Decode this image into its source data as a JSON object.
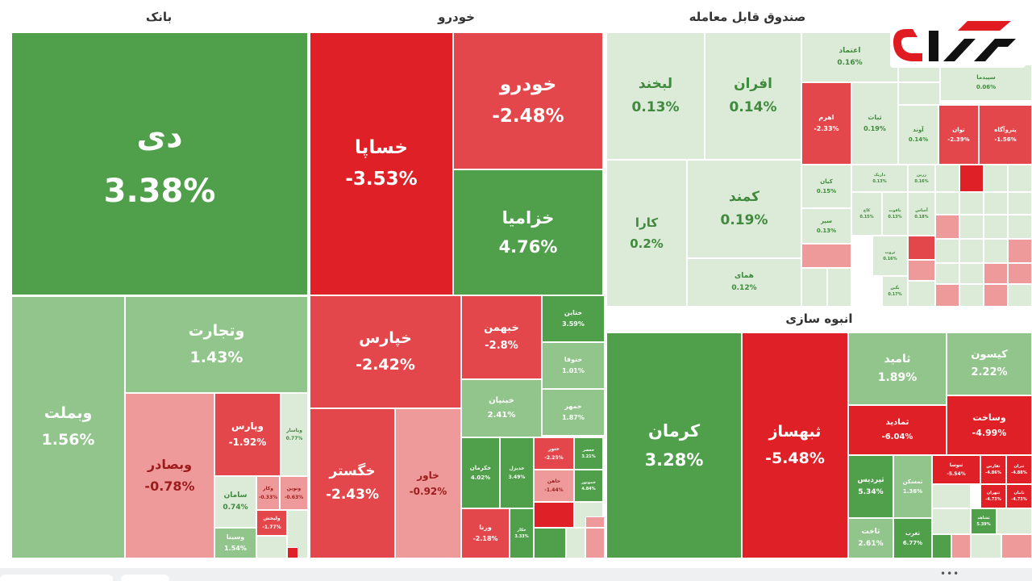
{
  "chart_data": {
    "type": "treemap",
    "metric": "daily change %",
    "colors": {
      "strong_green": "#4f9f4b",
      "mid_green": "#91c58b",
      "light_green": "#dcebd8",
      "strong_red": "#df2027",
      "mid_red": "#e4474b",
      "light_red": "#ef9a9a",
      "title": "#333333"
    },
    "sectors": [
      {
        "name": "بانک",
        "items": [
          {
            "name": "دی",
            "value": "3.38%"
          },
          {
            "name": "وتجارت",
            "value": "1.43%"
          },
          {
            "name": "وبملت",
            "value": "1.56%"
          },
          {
            "name": "وبصادر",
            "value": "-0.78%"
          },
          {
            "name": "وپارس",
            "value": "-1.92%"
          },
          {
            "name": "وپاسار",
            "value": "0.77%"
          },
          {
            "name": "سامان",
            "value": "0.74%"
          },
          {
            "name": "وکار",
            "value": "-0.33%"
          },
          {
            "name": "ونوین",
            "value": "-0.63%"
          },
          {
            "name": "ولیخش",
            "value": "-1.77%"
          },
          {
            "name": "وسینا",
            "value": "1.54%"
          }
        ]
      },
      {
        "name": "خودرو",
        "items": [
          {
            "name": "خساپا",
            "value": "-3.53%"
          },
          {
            "name": "خودرو",
            "value": "-2.48%"
          },
          {
            "name": "خزامیا",
            "value": "4.76%"
          },
          {
            "name": "خپارس",
            "value": "-2.42%"
          },
          {
            "name": "خبهمن",
            "value": "-2.8%"
          },
          {
            "name": "ختاین",
            "value": "3.59%"
          },
          {
            "name": "ختوقا",
            "value": "1.01%"
          },
          {
            "name": "خبنیان",
            "value": "2.41%"
          },
          {
            "name": "خمهر",
            "value": "1.87%"
          },
          {
            "name": "خگستر",
            "value": "-2.43%"
          },
          {
            "name": "خاور",
            "value": "-0.92%"
          },
          {
            "name": "خکرمان",
            "value": "4.02%"
          },
          {
            "name": "خدیزل",
            "value": "3.49%"
          },
          {
            "name": "ختور",
            "value": "-2.25%"
          },
          {
            "name": "خعصر",
            "value": "3.21%"
          },
          {
            "name": "خاهن",
            "value": "-1.44%"
          },
          {
            "name": "خموتور",
            "value": "4.84%"
          },
          {
            "name": "ورنا",
            "value": "-2.18%"
          },
          {
            "name": "خکار",
            "value": "3.33%"
          }
        ]
      },
      {
        "name": "صندوق قابل معامله",
        "items": [
          {
            "name": "لبخند",
            "value": "0.13%"
          },
          {
            "name": "افران",
            "value": "0.14%"
          },
          {
            "name": "اعتماد",
            "value": "0.16%"
          },
          {
            "name": "سپیدما",
            "value": "0.06%"
          },
          {
            "name": "اهرم",
            "value": "-2.33%"
          },
          {
            "name": "ثبات",
            "value": "0.19%"
          },
          {
            "name": "آوند",
            "value": "0.14%"
          },
          {
            "name": "توان",
            "value": "-2.39%"
          },
          {
            "name": "پتروآگاه",
            "value": "-1.56%"
          },
          {
            "name": "کارا",
            "value": "0.2%"
          },
          {
            "name": "کمند",
            "value": "0.19%"
          },
          {
            "name": "همای",
            "value": "0.12%"
          },
          {
            "name": "کیان",
            "value": "0.15%"
          },
          {
            "name": "سپر",
            "value": "0.13%"
          },
          {
            "name": "داریک",
            "value": "0.13%"
          },
          {
            "name": "کاج",
            "value": "0.15%"
          },
          {
            "name": "یاقوت",
            "value": "0.13%"
          },
          {
            "name": "زرین",
            "value": "0.16%"
          },
          {
            "name": "ثروت",
            "value": "0.16%"
          },
          {
            "name": "نگین",
            "value": "0.17%"
          },
          {
            "name": "آساس",
            "value": "0.18%"
          }
        ]
      },
      {
        "name": "انبوه سازی",
        "items": [
          {
            "name": "کرمان",
            "value": "3.28%"
          },
          {
            "name": "ثبهساز",
            "value": "-5.48%"
          },
          {
            "name": "ثامید",
            "value": "1.89%"
          },
          {
            "name": "کیسون",
            "value": "2.22%"
          },
          {
            "name": "ثمادید",
            "value": "-6.04%"
          },
          {
            "name": "وساخت",
            "value": "-4.99%"
          },
          {
            "name": "ثپردیس",
            "value": "5.34%"
          },
          {
            "name": "ثمسکن",
            "value": "1.36%"
          },
          {
            "name": "ثاخت",
            "value": "2.61%"
          },
          {
            "name": "ثغرب",
            "value": "6.77%"
          },
          {
            "name": "ثنوسا",
            "value": "-5.54%"
          },
          {
            "name": "ثفارس",
            "value": "-4.86%"
          },
          {
            "name": "ثتران",
            "value": "-4.88%"
          },
          {
            "name": "ثتهران",
            "value": "-4.73%"
          },
          {
            "name": "ثامان",
            "value": "-4.73%"
          },
          {
            "name": "ثشاهد",
            "value": "5.39%"
          }
        ]
      }
    ]
  }
}
